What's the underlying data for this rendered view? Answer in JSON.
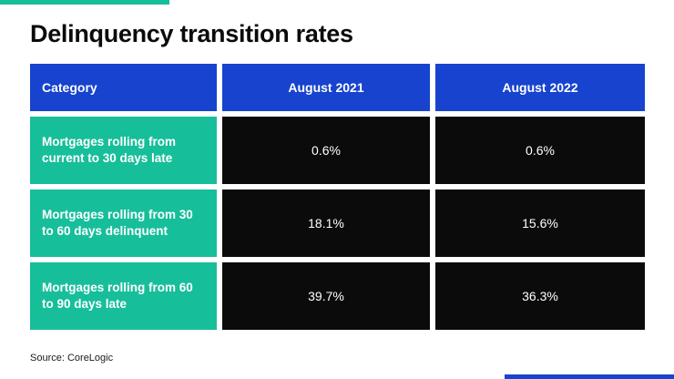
{
  "title": "Delinquency transition rates",
  "source": "Source: CoreLogic",
  "colors": {
    "header_blue": "#1743CE",
    "category_teal": "#17BE9A",
    "value_black": "#0b0b0b",
    "text_white": "#ffffff"
  },
  "chart_data": {
    "type": "table",
    "title": "Delinquency transition rates",
    "columns": [
      "Category",
      "August 2021",
      "August 2022"
    ],
    "rows": [
      [
        "Mortgages rolling from current to 30 days late",
        "0.6%",
        "0.6%"
      ],
      [
        "Mortgages rolling from 30 to 60 days delinquent",
        "18.1%",
        "15.6%"
      ],
      [
        "Mortgages rolling from 60 to 90 days late",
        "39.7%",
        "36.3%"
      ]
    ],
    "source": "Source: CoreLogic",
    "legend_position": "none",
    "grid": false
  }
}
